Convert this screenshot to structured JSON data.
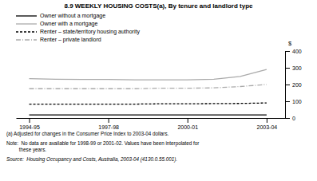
{
  "chart_data": {
    "type": "line",
    "title": "8.9   WEEKLY HOUSING COSTS(a), By tenure and landlord type",
    "ylabel": "$",
    "x": [
      1994.5,
      1995.5,
      1996.5,
      1997.5,
      1998.5,
      1999.5,
      2000.5,
      2001.5,
      2002.5,
      2003.5
    ],
    "xlim": [
      1994.0,
      2004.2
    ],
    "xticks": [
      {
        "value": 1994.5,
        "label": "1994-95"
      },
      {
        "value": 1997.5,
        "label": "1997-98"
      },
      {
        "value": 2000.5,
        "label": "2000-01"
      },
      {
        "value": 2003.5,
        "label": "2003-04"
      }
    ],
    "ylim": [
      0,
      400
    ],
    "yticks": [
      0,
      100,
      200,
      300,
      400
    ],
    "legend": "top left",
    "series": [
      {
        "name": "Owner without a mortgage",
        "color": "#000000",
        "line_style": "solid",
        "values": [
          18,
          18,
          18,
          18,
          18,
          18,
          18,
          18,
          18,
          18
        ]
      },
      {
        "name": "Owner with a mortgage",
        "color": "#aaaaaa",
        "line_style": "solid",
        "values": [
          235,
          232,
          230,
          230,
          228,
          228,
          228,
          232,
          248,
          290
        ]
      },
      {
        "name": "Renter – state/territory housing authority",
        "color": "#000000",
        "line_style": "dashed",
        "values": [
          83,
          83,
          83,
          83,
          83,
          85,
          85,
          86,
          87,
          90
        ]
      },
      {
        "name": "Renter – private landlord",
        "color": "#aaaaaa",
        "line_style": "dashdot",
        "values": [
          175,
          175,
          175,
          175,
          175,
          178,
          178,
          180,
          188,
          200
        ]
      }
    ],
    "annotations": [
      "(a) Adjusted for changes in the Consumer Price Index to 2003-04 dollars.",
      "Note:  No data are available for 1998-99 or 2001-02. Values have been interpolated for\n         these years.",
      "Source:  Housing Occupancy and Costs, Australia, 2003-04 (4130.0.55.001)."
    ]
  }
}
